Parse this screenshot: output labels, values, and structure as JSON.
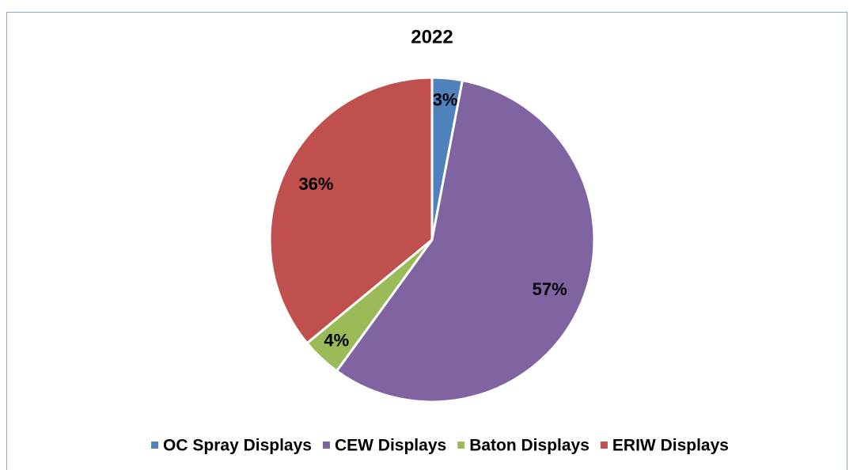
{
  "chart_data": {
    "type": "pie",
    "title": "2022",
    "categories": [
      "OC Spray Displays",
      "CEW Displays",
      "Baton Displays",
      "ERIW Displays"
    ],
    "values": [
      3,
      57,
      4,
      36
    ],
    "value_labels": [
      "3%",
      "57%",
      "4%",
      "36%"
    ],
    "colors": [
      "#4f81bd",
      "#8064a2",
      "#9bbb59",
      "#c0504d"
    ],
    "legend": "bottom"
  }
}
